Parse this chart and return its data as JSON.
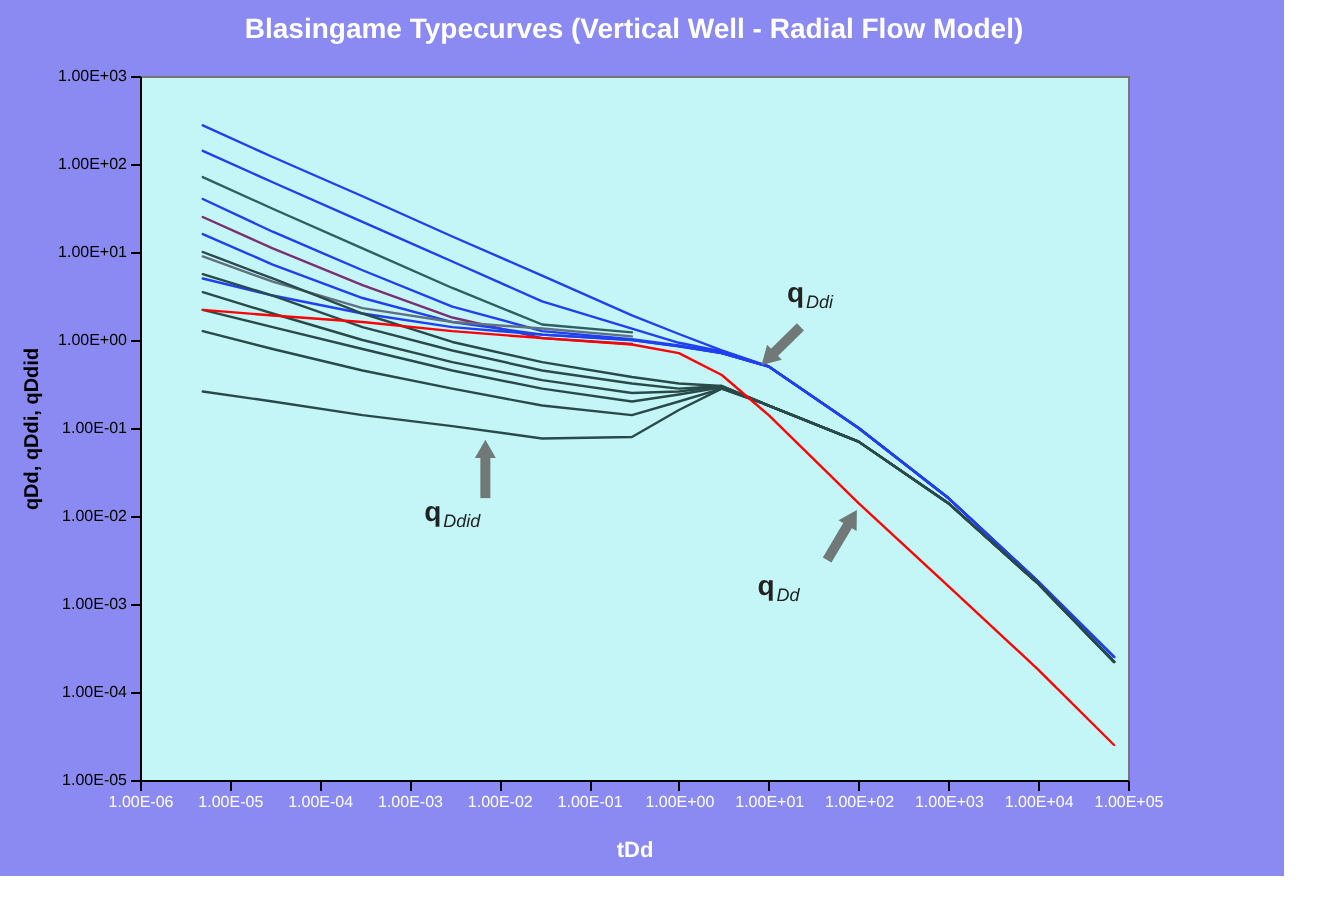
{
  "chart_data": {
    "type": "line",
    "title": "Blasingame Typecurves (Vertical Well - Radial Flow Model)",
    "xlabel": "tDd",
    "ylabel": "qDd, qDdi, qDdid",
    "x": [
      5e-06,
      3e-05,
      0.0003,
      0.003,
      0.03,
      0.3,
      1,
      3,
      10,
      100,
      1000,
      10000.0,
      70000.0
    ],
    "series": [
      {
        "color": "#2040f0",
        "values": [
          275,
          120,
          43,
          15,
          5.4,
          1.9,
          1.17,
          0.76,
          0.5,
          0.1,
          0.016,
          0.0018,
          0.00025
        ]
      },
      {
        "color": "#2040f0",
        "values": [
          141,
          62,
          22,
          7.8,
          2.75,
          1.35,
          0.93,
          0.74,
          0.5,
          0.1,
          0.016,
          0.0018,
          0.00025
        ]
      },
      {
        "color": "#2f5f5f",
        "values": [
          71,
          31,
          11,
          3.9,
          1.5,
          1.22,
          null,
          null,
          null,
          null,
          null,
          null,
          null
        ]
      },
      {
        "color": "#2040f0",
        "values": [
          40,
          17,
          6.2,
          2.4,
          1.26,
          1.02,
          0.87,
          0.71,
          0.5,
          0.1,
          0.016,
          0.0018,
          0.00025
        ]
      },
      {
        "color": "#7a3070",
        "values": [
          25,
          11,
          4.2,
          1.8,
          1.05,
          0.9,
          null,
          null,
          null,
          null,
          null,
          null,
          null
        ]
      },
      {
        "color": "#2040f0",
        "values": [
          16,
          7.2,
          3.0,
          1.6,
          1.15,
          1.0,
          0.85,
          0.71,
          0.5,
          0.1,
          0.016,
          0.0018,
          0.00025
        ]
      },
      {
        "color": "#607080",
        "values": [
          8.9,
          4.6,
          2.3,
          1.6,
          1.35,
          1.1,
          null,
          null,
          null,
          null,
          null,
          null,
          null
        ]
      },
      {
        "color": "#2040f0",
        "values": [
          5.0,
          3.2,
          2.0,
          1.4,
          1.15,
          1.0,
          0.85,
          0.71,
          0.5,
          0.1,
          0.016,
          0.0018,
          0.00025
        ]
      },
      {
        "color": "#2a4a4a",
        "values": [
          10,
          5.0,
          2.0,
          0.95,
          0.56,
          0.38,
          0.32,
          0.3,
          0.18,
          0.07,
          0.014,
          0.0017,
          0.00022
        ]
      },
      {
        "color": "#2a4a4a",
        "values": [
          5.6,
          3.2,
          1.4,
          0.76,
          0.45,
          0.32,
          0.28,
          0.3,
          0.18,
          0.07,
          0.014,
          0.0017,
          0.00022
        ]
      },
      {
        "color": "#2a4a4a",
        "values": [
          3.5,
          2.0,
          1.0,
          0.56,
          0.35,
          0.25,
          0.26,
          0.3,
          0.18,
          0.07,
          0.014,
          0.0017,
          0.00022
        ]
      },
      {
        "color": "#2a4a4a",
        "values": [
          2.2,
          1.4,
          0.79,
          0.45,
          0.28,
          0.2,
          0.24,
          0.29,
          0.18,
          0.07,
          0.014,
          0.0017,
          0.00022
        ]
      },
      {
        "color": "#2a4a4a",
        "values": [
          1.26,
          0.79,
          0.45,
          0.28,
          0.18,
          0.14,
          0.2,
          0.28,
          0.18,
          0.07,
          0.014,
          0.0017,
          0.00022
        ]
      },
      {
        "color": "#2a4a4a",
        "values": [
          0.26,
          0.2,
          0.14,
          0.105,
          0.076,
          0.079,
          0.16,
          0.28,
          0.18,
          0.07,
          0.014,
          0.0017,
          0.00022
        ]
      },
      {
        "color": "#ff0000",
        "values": [
          2.2,
          1.9,
          1.6,
          1.26,
          1.05,
          0.89,
          0.71,
          0.4,
          0.14,
          0.014,
          0.0016,
          0.00018,
          2.5e-05
        ]
      }
    ],
    "log": "xy",
    "xlim": [
      1e-06,
      100000.0
    ],
    "ylim": [
      1e-05,
      1000.0
    ],
    "xticks": [
      {
        "value": 1e-06,
        "label": "1.00E-06"
      },
      {
        "value": 1e-05,
        "label": "1.00E-05"
      },
      {
        "value": 0.0001,
        "label": "1.00E-04"
      },
      {
        "value": 0.001,
        "label": "1.00E-03"
      },
      {
        "value": 0.01,
        "label": "1.00E-02"
      },
      {
        "value": 0.1,
        "label": "1.00E-01"
      },
      {
        "value": 1,
        "label": "1.00E+00"
      },
      {
        "value": 10,
        "label": "1.00E+01"
      },
      {
        "value": 100,
        "label": "1.00E+02"
      },
      {
        "value": 1000,
        "label": "1.00E+03"
      },
      {
        "value": 10000.0,
        "label": "1.00E+04"
      },
      {
        "value": 100000.0,
        "label": "1.00E+05"
      }
    ],
    "yticks": [
      {
        "value": 1e-05,
        "label": "1.00E-05"
      },
      {
        "value": 0.0001,
        "label": "1.00E-04"
      },
      {
        "value": 0.001,
        "label": "1.00E-03"
      },
      {
        "value": 0.01,
        "label": "1.00E-02"
      },
      {
        "value": 0.1,
        "label": "1.00E-01"
      },
      {
        "value": 1,
        "label": "1.00E+00"
      },
      {
        "value": 10,
        "label": "1.00E+01"
      },
      {
        "value": 100,
        "label": "1.00E+02"
      },
      {
        "value": 1000,
        "label": "1.00E+03"
      }
    ],
    "annotations": [
      {
        "text": "q$_{Ddi}$",
        "x": 8,
        "y": 0.5
      },
      {
        "text": "q$_{Dd}$",
        "x": 100,
        "y": 0.0126
      },
      {
        "text": "q$_{Ddid}$",
        "x": 0.007,
        "y": 0.08
      }
    ],
    "grid": false,
    "legend": false,
    "marker": "none",
    "line_style": "solid"
  }
}
